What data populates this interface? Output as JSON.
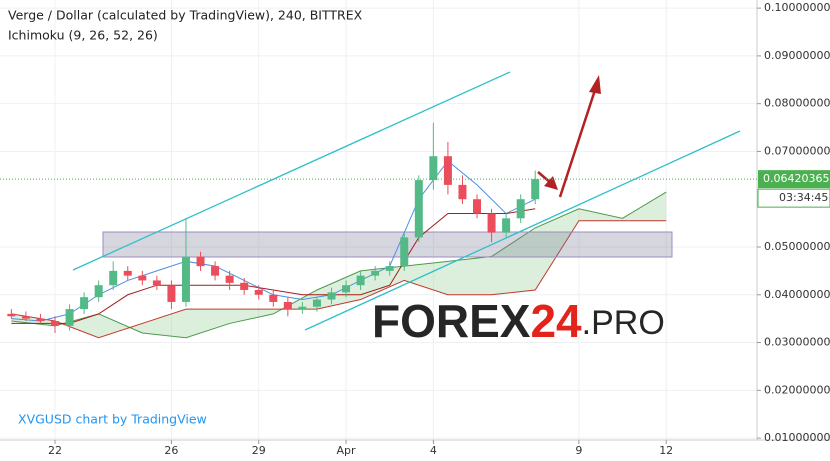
{
  "chart_data": {
    "type": "candlestick",
    "title": "Verge / Dollar (calculated by TradingView), 240, BITTREX",
    "subtitle": "Ichimoku (9, 26, 52, 26)",
    "credit": "XVGUSD chart by TradingView",
    "watermark": [
      "FOREX",
      "24",
      ".PRO"
    ],
    "up_color": "#53b987",
    "down_color": "#eb4d5c",
    "grid": true,
    "xlim": [
      -1.89,
      24.12
    ],
    "xticks": [
      {
        "value": 0,
        "label": "22"
      },
      {
        "value": 4,
        "label": "26"
      },
      {
        "value": 7,
        "label": "29"
      },
      {
        "value": 10,
        "label": "Apr"
      },
      {
        "value": 13,
        "label": "4"
      },
      {
        "value": 18,
        "label": "9"
      },
      {
        "value": 21,
        "label": "12"
      }
    ],
    "ylim": [
      0.0096,
      0.1017
    ],
    "yticks": [
      {
        "value": 0.1,
        "label": "0.10000000"
      },
      {
        "value": 0.09,
        "label": "0.09000000"
      },
      {
        "value": 0.08,
        "label": "0.08000000"
      },
      {
        "value": 0.07,
        "label": "0.07000000"
      },
      {
        "value": 0.05,
        "label": "0.05000000"
      },
      {
        "value": 0.04,
        "label": "0.04000000"
      },
      {
        "value": 0.03,
        "label": "0.03000000"
      },
      {
        "value": 0.02,
        "label": "0.02000000"
      },
      {
        "value": 0.01,
        "label": "0.01000000"
      }
    ],
    "x": [
      -1.5,
      -1,
      -0.5,
      0,
      0.5,
      1,
      1.5,
      2,
      2.5,
      3,
      3.5,
      4,
      4.5,
      5,
      5.5,
      6,
      6.5,
      7,
      7.5,
      8,
      8.5,
      9,
      9.5,
      10,
      10.5,
      11,
      11.5,
      12,
      12.5,
      13,
      13.5,
      14,
      14.5,
      15,
      15.5,
      16,
      16.5
    ],
    "open": [
      0.036,
      0.0355,
      0.035,
      0.0345,
      0.0335,
      0.037,
      0.0395,
      0.042,
      0.045,
      0.044,
      0.043,
      0.042,
      0.0385,
      0.048,
      0.046,
      0.044,
      0.0425,
      0.041,
      0.04,
      0.0385,
      0.037,
      0.0375,
      0.039,
      0.0405,
      0.042,
      0.044,
      0.045,
      0.046,
      0.052,
      0.064,
      0.069,
      0.063,
      0.06,
      0.057,
      0.053,
      0.056,
      0.06
    ],
    "high": [
      0.037,
      0.0365,
      0.036,
      0.0355,
      0.038,
      0.0405,
      0.043,
      0.047,
      0.046,
      0.045,
      0.044,
      0.043,
      0.056,
      0.049,
      0.047,
      0.045,
      0.0435,
      0.042,
      0.041,
      0.0395,
      0.0385,
      0.0395,
      0.0415,
      0.043,
      0.045,
      0.046,
      0.047,
      0.053,
      0.065,
      0.076,
      0.072,
      0.065,
      0.061,
      0.058,
      0.057,
      0.061,
      0.066
    ],
    "low": [
      0.035,
      0.0345,
      0.034,
      0.032,
      0.0325,
      0.036,
      0.0385,
      0.041,
      0.043,
      0.042,
      0.041,
      0.037,
      0.0375,
      0.045,
      0.043,
      0.041,
      0.04,
      0.039,
      0.0375,
      0.0355,
      0.036,
      0.0365,
      0.038,
      0.0395,
      0.041,
      0.043,
      0.044,
      0.045,
      0.051,
      0.062,
      0.061,
      0.059,
      0.056,
      0.051,
      0.052,
      0.055,
      0.059
    ],
    "close": [
      0.0355,
      0.035,
      0.0345,
      0.0335,
      0.037,
      0.0395,
      0.042,
      0.045,
      0.044,
      0.043,
      0.042,
      0.0385,
      0.048,
      0.046,
      0.044,
      0.0425,
      0.041,
      0.04,
      0.0385,
      0.037,
      0.0375,
      0.039,
      0.0405,
      0.042,
      0.044,
      0.045,
      0.046,
      0.052,
      0.064,
      0.069,
      0.063,
      0.06,
      0.057,
      0.053,
      0.056,
      0.06,
      0.0642
    ],
    "ichimoku": [
      {
        "color": "#4a90e2",
        "x": [
          -1.5,
          -0.5,
          0.5,
          1.5,
          2.5,
          3.5,
          4.5,
          5.5,
          6.5,
          7.5,
          8.5,
          9.5,
          10.5,
          11.5,
          12.5,
          13.5,
          14.5,
          15.5,
          16.5
        ],
        "values": [
          0.035,
          0.0345,
          0.036,
          0.04,
          0.043,
          0.045,
          0.047,
          0.046,
          0.043,
          0.04,
          0.039,
          0.04,
          0.043,
          0.046,
          0.06,
          0.068,
          0.063,
          0.057,
          0.06
        ]
      },
      {
        "color": "#a61d1d",
        "x": [
          -1.5,
          -0.5,
          0.5,
          1.5,
          2.5,
          3.5,
          4.5,
          5.5,
          6.5,
          7.5,
          8.5,
          9.5,
          10.5,
          11.5,
          12.5,
          13.5,
          14.5,
          15.5,
          16.5
        ],
        "values": [
          0.034,
          0.034,
          0.034,
          0.036,
          0.04,
          0.042,
          0.042,
          0.042,
          0.042,
          0.041,
          0.04,
          0.04,
          0.04,
          0.042,
          0.052,
          0.057,
          0.057,
          0.057,
          0.058
        ]
      }
    ],
    "cloud": {
      "fill": "#8bc98b",
      "x": [
        -1.5,
        0,
        1.5,
        3,
        4.5,
        6,
        7.5,
        9,
        10.5,
        12,
        13.5,
        15,
        16.5,
        18,
        19.5,
        21
      ],
      "span_a": {
        "color": "#4c9a4c",
        "values": [
          0.0345,
          0.0335,
          0.036,
          0.032,
          0.031,
          0.034,
          0.036,
          0.041,
          0.045,
          0.046,
          0.047,
          0.048,
          0.054,
          0.058,
          0.056,
          0.0615
        ]
      },
      "span_b": {
        "color": "#c0392b",
        "values": [
          0.036,
          0.0345,
          0.031,
          0.034,
          0.037,
          0.037,
          0.037,
          0.037,
          0.039,
          0.043,
          0.04,
          0.04,
          0.041,
          0.0555,
          0.0555,
          0.0555
        ]
      }
    },
    "last_price": {
      "value": 0.06420365,
      "label": "0.06420365",
      "countdown": "03:34:45",
      "color": "#4caf50"
    }
  }
}
